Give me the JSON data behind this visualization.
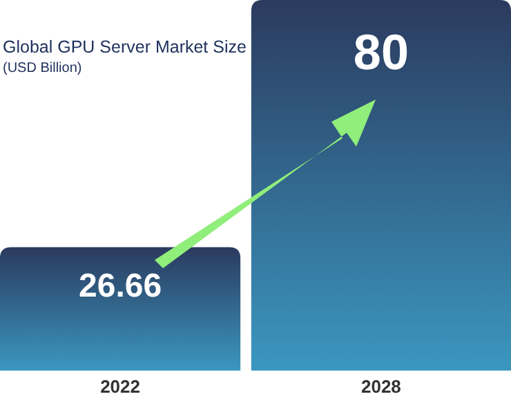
{
  "chart_data": {
    "type": "bar",
    "title": "Global GPU Server Market Size",
    "subtitle": "(USD Billion)",
    "categories": [
      "2022",
      "2028"
    ],
    "values": [
      26.66,
      80
    ],
    "color": "#2b3a5e",
    "data_labels": true
  }
}
